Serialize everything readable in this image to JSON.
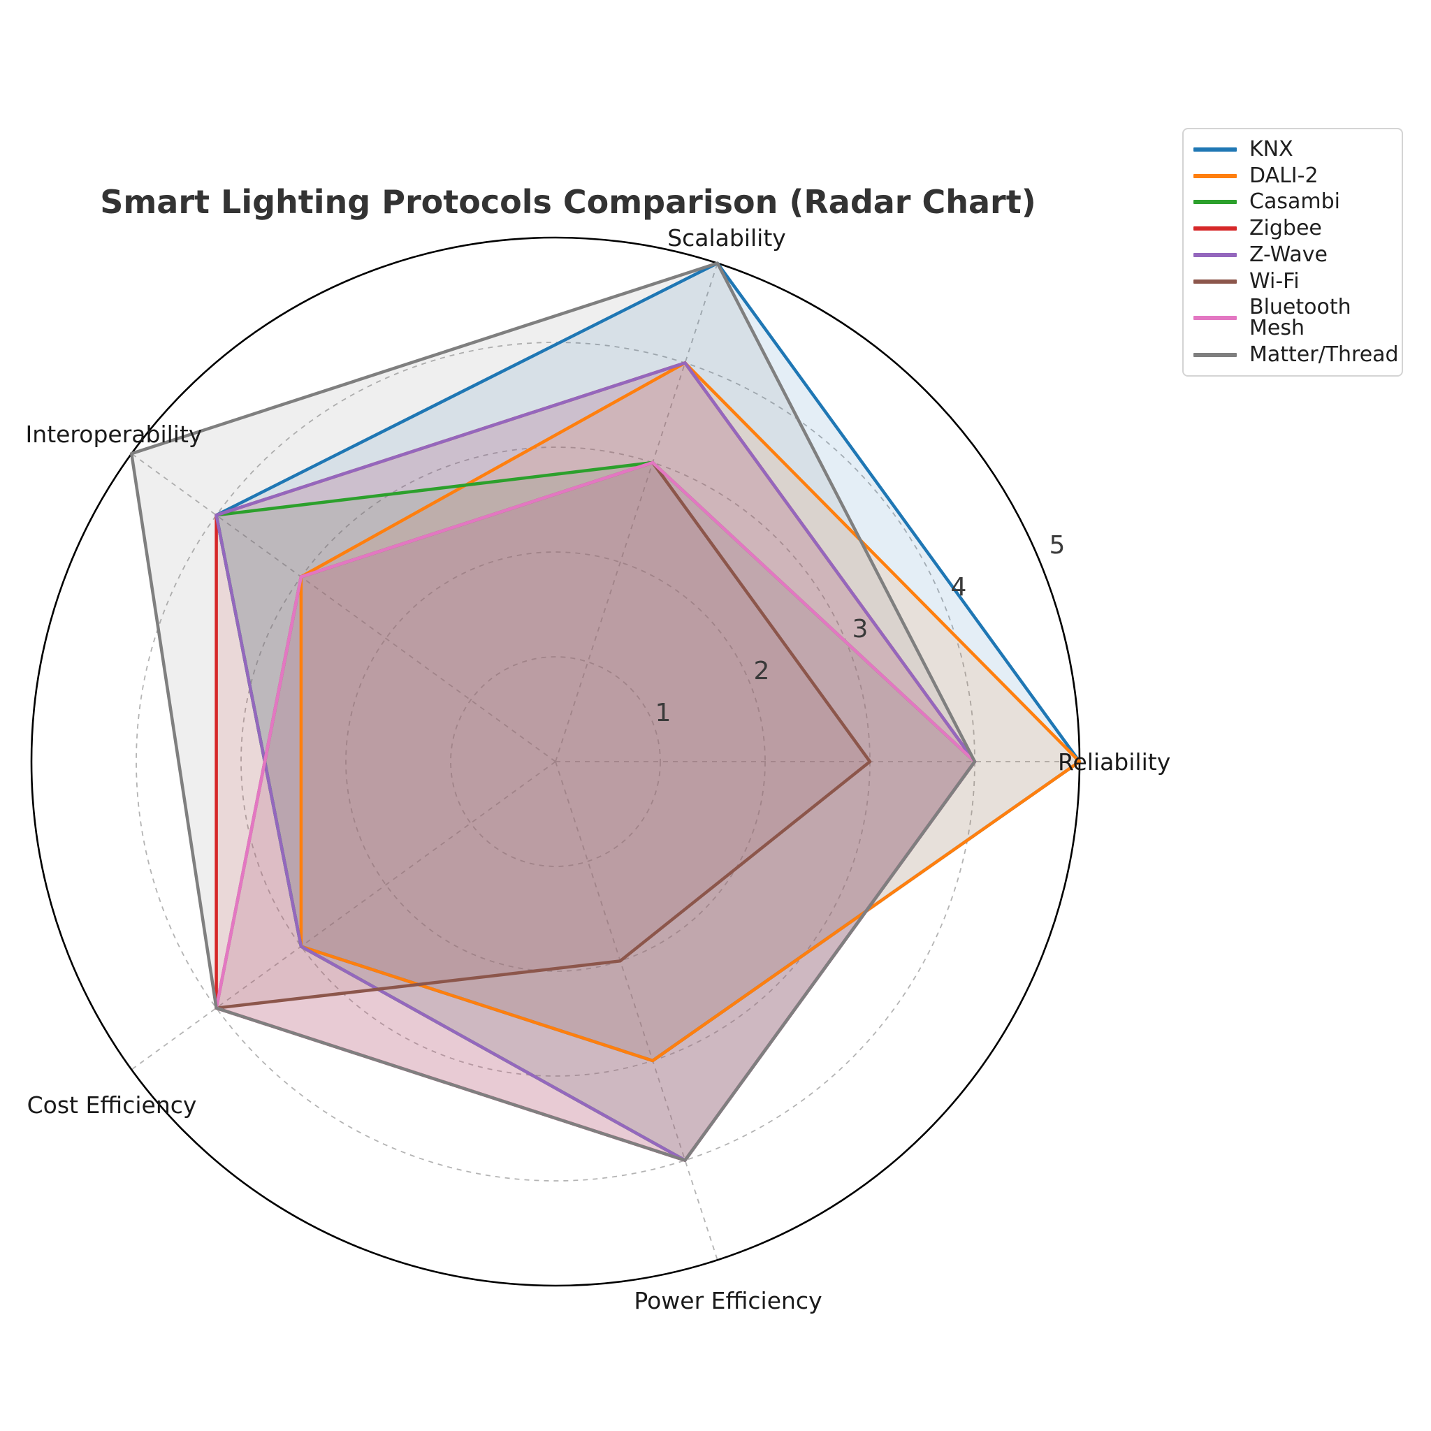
{
  "title": "Smart Lighting Protocols Comparison (Radar Chart)",
  "chart_data": {
    "type": "radar",
    "axes": [
      "Reliability",
      "Scalability",
      "Interoperability",
      "Cost Efficiency",
      "Power Efficiency"
    ],
    "scale": {
      "min": 0,
      "max": 5,
      "ticks": [
        1,
        2,
        3,
        4,
        5
      ]
    },
    "series": [
      {
        "name": "KNX",
        "color": "#1f77b4",
        "values": [
          5,
          5,
          4,
          3,
          3
        ]
      },
      {
        "name": "DALI-2",
        "color": "#ff7f0e",
        "values": [
          5,
          4,
          3,
          3,
          3
        ]
      },
      {
        "name": "Casambi",
        "color": "#2ca02c",
        "values": [
          4,
          3,
          4,
          3,
          4
        ]
      },
      {
        "name": "Zigbee",
        "color": "#d62728",
        "values": [
          4,
          4,
          4,
          4,
          4
        ]
      },
      {
        "name": "Z-Wave",
        "color": "#9467bd",
        "values": [
          4,
          4,
          4,
          3,
          4
        ]
      },
      {
        "name": "Wi-Fi",
        "color": "#8c564b",
        "values": [
          3,
          3,
          3,
          4,
          2
        ]
      },
      {
        "name": "Bluetooth Mesh",
        "color": "#e377c2",
        "values": [
          4,
          3,
          3,
          4,
          4
        ]
      },
      {
        "name": "Matter/Thread",
        "color": "#7f7f7f",
        "values": [
          4,
          5,
          5,
          4,
          4
        ]
      }
    ],
    "legend_position": "top-right",
    "grid": {
      "style": "dashed",
      "boundary": "solid-circle"
    }
  }
}
